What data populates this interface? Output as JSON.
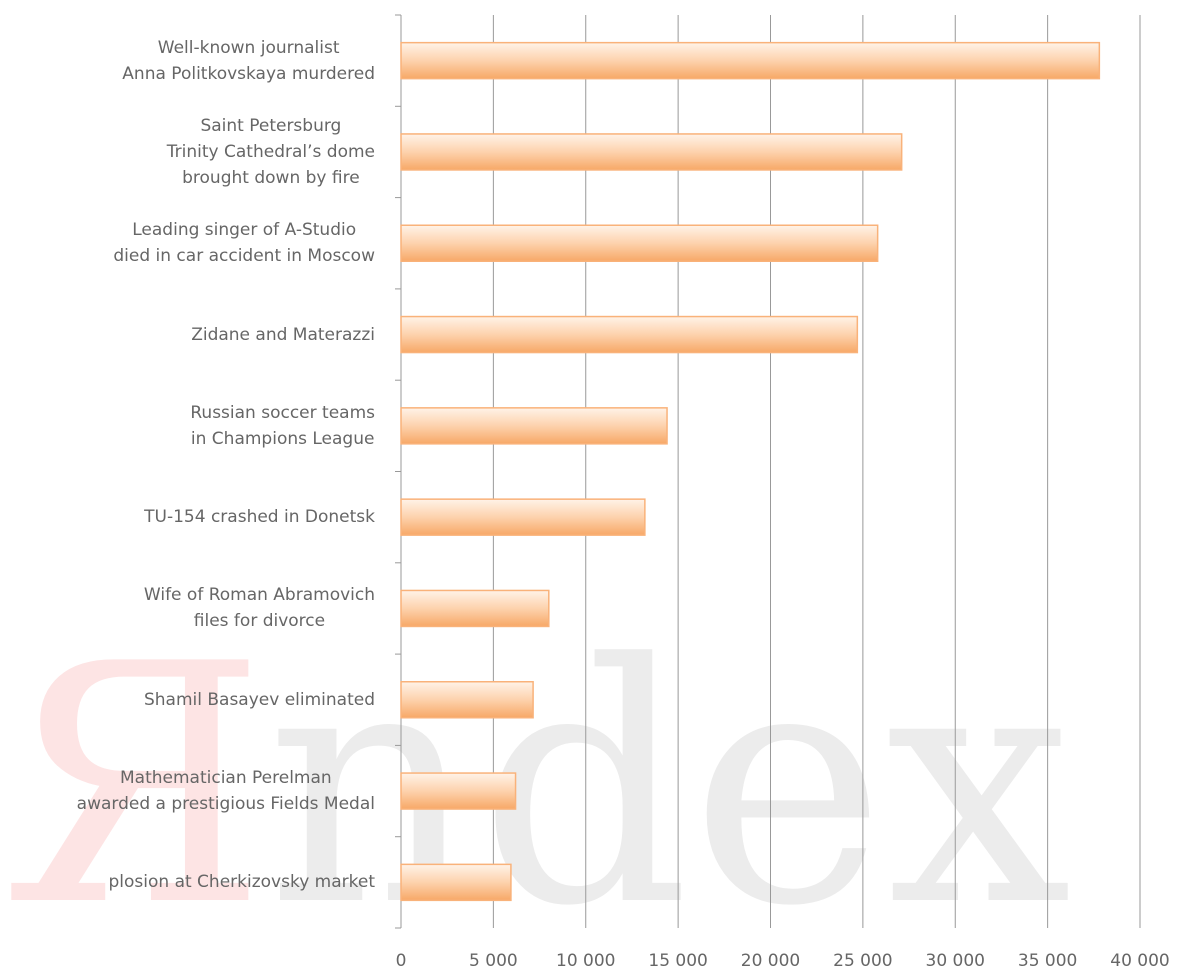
{
  "chart_data": {
    "type": "barh",
    "categories": [
      "Well-known journalist\nAnna Politkovskaya murdered",
      "Saint Petersburg\nTrinity Cathedral’s dome\nbrought down by fire",
      "Leading singer of A-Studio\ndied in car accident in Moscow",
      "Zidane and Materazzi",
      "Russian soccer teams\nin Champions League",
      "TU-154 crashed in Donetsk",
      "Wife of Roman Abramovich\nfiles for divorce",
      "Shamil Basayev eliminated",
      "Mathematician Perelman\nawarded a prestigious Fields Medal",
      "plosion at Cherkizovsky market"
    ],
    "values": [
      37800,
      27100,
      25800,
      24700,
      14400,
      13200,
      8000,
      7150,
      6200,
      5950
    ],
    "color": "#f9b27a",
    "xlim": [
      0,
      40000
    ],
    "xticks": [
      0,
      {
        "value": 5000,
        "label": "5 000"
      },
      {
        "value": 10000,
        "label": "10 000"
      },
      {
        "value": 15000,
        "label": "15 000"
      },
      {
        "value": 20000,
        "label": "20 000"
      },
      {
        "value": 25000,
        "label": "25 000"
      },
      {
        "value": 30000,
        "label": "30 000"
      },
      {
        "value": 35000,
        "label": "35 000"
      },
      {
        "value": 40000,
        "label": "40 000"
      }
    ],
    "grid": true,
    "watermark": [
      "Я",
      "ndex"
    ]
  }
}
